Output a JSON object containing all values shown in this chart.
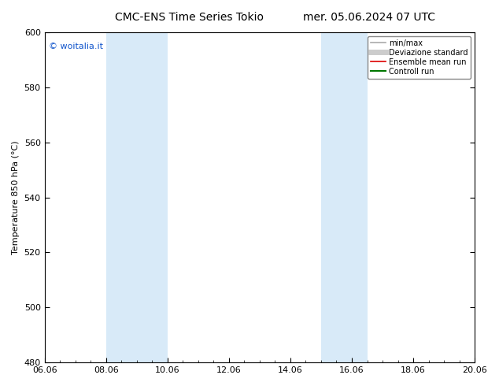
{
  "title": "CMC-ENS Time Series Tokio",
  "title2": "mer. 05.06.2024 07 UTC",
  "ylabel": "Temperature 850 hPa (°C)",
  "ylim": [
    480,
    600
  ],
  "yticks": [
    480,
    500,
    520,
    540,
    560,
    580,
    600
  ],
  "x_start": 0,
  "x_end": 14,
  "xtick_labels": [
    "06.06",
    "08.06",
    "10.06",
    "12.06",
    "14.06",
    "16.06",
    "18.06",
    "20.06"
  ],
  "xtick_positions": [
    0,
    2,
    4,
    6,
    8,
    10,
    12,
    14
  ],
  "bg_color": "#ffffff",
  "plot_bg_color": "#ffffff",
  "shaded_bands": [
    {
      "x_start": 2.0,
      "x_end": 4.0,
      "color": "#d8eaf8"
    },
    {
      "x_start": 9.0,
      "x_end": 10.5,
      "color": "#d8eaf8"
    }
  ],
  "legend_entries": [
    {
      "label": "min/max",
      "color": "#aaaaaa",
      "lw": 1.2,
      "style": "-"
    },
    {
      "label": "Deviazione standard",
      "color": "#cccccc",
      "lw": 5,
      "style": "-"
    },
    {
      "label": "Ensemble mean run",
      "color": "#dd0000",
      "lw": 1.2,
      "style": "-"
    },
    {
      "label": "Controll run",
      "color": "#007700",
      "lw": 1.5,
      "style": "-"
    }
  ],
  "watermark_text": "© woitalia.it",
  "watermark_color": "#1155cc",
  "title_fontsize": 10,
  "axis_fontsize": 8,
  "tick_fontsize": 8,
  "legend_fontsize": 7
}
